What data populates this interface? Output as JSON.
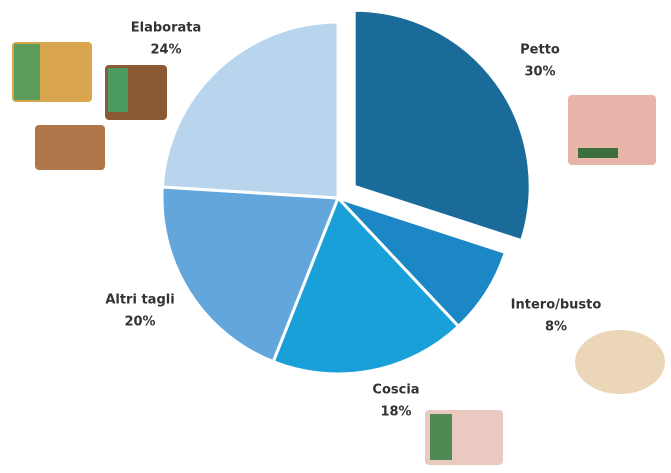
{
  "chart_data": {
    "type": "pie",
    "categories": [
      "Petto",
      "Intero/busto",
      "Coscia",
      "Altri tagli",
      "Elaborata"
    ],
    "values": [
      30,
      8,
      18,
      20,
      24
    ],
    "value_labels": [
      "30%",
      "8%",
      "18%",
      "20%",
      "24%"
    ],
    "colors": [
      "#1a6a9a",
      "#1b88c5",
      "#1aa0d8",
      "#62a6dc",
      "#b9d5ee"
    ]
  }
}
